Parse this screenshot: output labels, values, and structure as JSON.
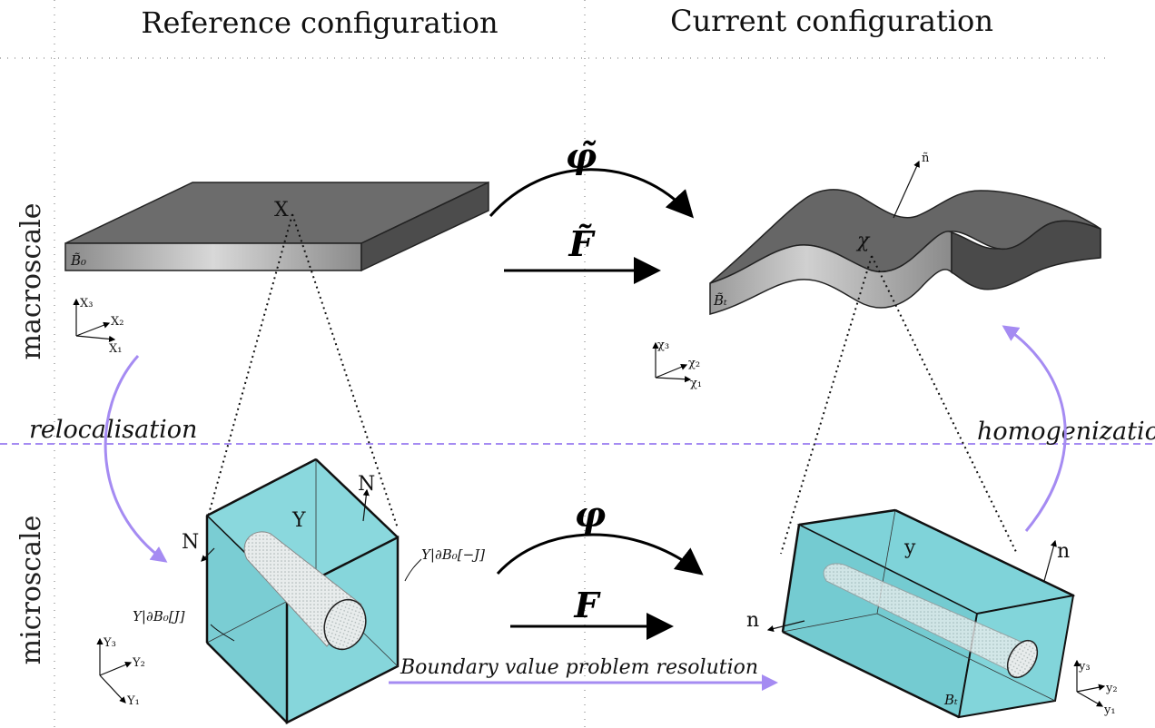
{
  "headers": {
    "reference": "Reference configuration",
    "current": "Current configuration"
  },
  "scales": {
    "macro": "macroscale",
    "micro": "microscale"
  },
  "transitions": {
    "relocalisation": "relocalisation",
    "homogenization": "homogenization",
    "bvp": "Boundary value problem resolution"
  },
  "macro": {
    "map_symbol": "φ̃",
    "gradient_symbol": "F̃",
    "ref_point": "X",
    "cur_point": "χ",
    "cur_normal": "ñ",
    "ref_body": "B̃₀",
    "cur_body": "B̃ₜ",
    "ref_axes": {
      "a1": "X₁",
      "a2": "X₂",
      "a3": "X₃"
    },
    "cur_axes": {
      "a1": "χ₁",
      "a2": "χ₂",
      "a3": "χ₃"
    }
  },
  "micro": {
    "map_symbol": "φ",
    "gradient_symbol": "F",
    "ref_point": "Y",
    "cur_point": "y",
    "ref_normal": "N",
    "cur_normal": "n",
    "cur_body": "Bₜ",
    "bc_minus": "Y|∂B₀[−J]",
    "bc_plus": "Y|∂B₀[J]",
    "ref_axes": {
      "a1": "Y₁",
      "a2": "Y₂",
      "a3": "Y₃"
    },
    "cur_axes": {
      "a1": "y₁",
      "a2": "y₂",
      "a3": "y₃"
    }
  },
  "colors": {
    "slab_top": "#707070",
    "slab_side": "#bdbdbd",
    "cell": "#7fd3d9",
    "accent_arrow": "#a58bf2",
    "divider": "#a58bf2"
  }
}
